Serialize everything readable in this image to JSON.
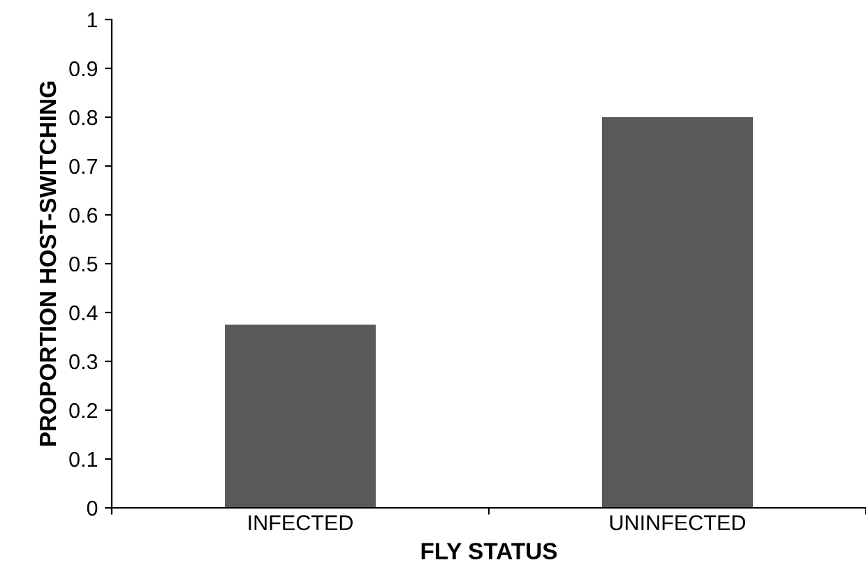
{
  "chart_data": {
    "type": "bar",
    "xlabel": "FLY STATUS",
    "ylabel": "PROPORTION HOST-SWITCHING",
    "categories": [
      "INFECTED",
      "UNINFECTED"
    ],
    "values": [
      0.375,
      0.8
    ],
    "color": "#595959",
    "ylim": [
      0,
      1
    ],
    "yticks": [
      0,
      0.1,
      0.2,
      0.3,
      0.4,
      0.5,
      0.6,
      0.7,
      0.8,
      0.9,
      1
    ],
    "grid": false,
    "legend": false
  }
}
